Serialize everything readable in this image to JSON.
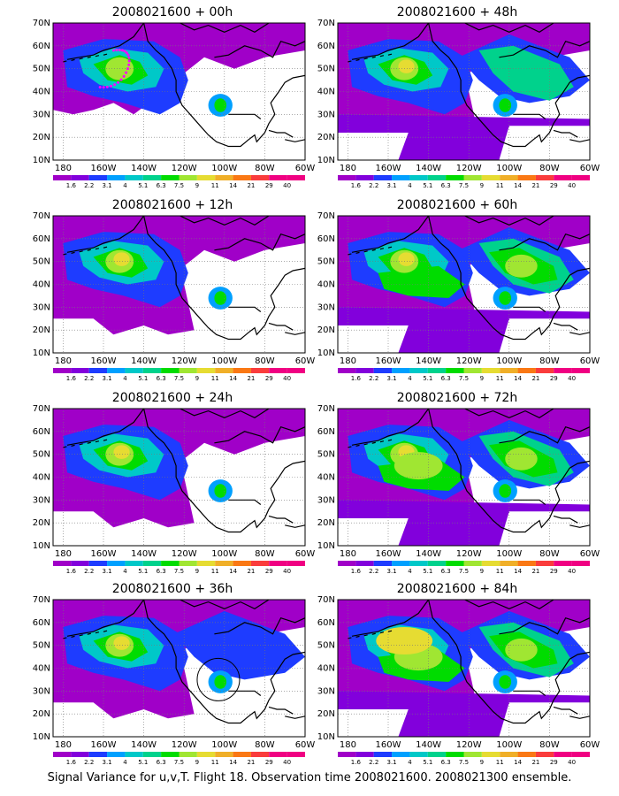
{
  "footer": "Signal Variance for u,v,T. Flight 18. Observation time 2008021600. 2008021300 ensemble.",
  "chart_data": {
    "type": "heatmap",
    "projection": "lat-lon map, North Pacific / North America",
    "x_ticks": [
      "180",
      "160W",
      "140W",
      "120W",
      "100W",
      "80W",
      "60W"
    ],
    "y_ticks": [
      "10N",
      "20N",
      "30N",
      "40N",
      "50N",
      "60N",
      "70N"
    ],
    "xlim": [
      "175E",
      "60W"
    ],
    "ylim": [
      "10N",
      "70N"
    ],
    "grid": true,
    "colorbar": {
      "labels": [
        "1.6",
        "2.2",
        "3.1",
        "4",
        "5.1",
        "6.3",
        "7.5",
        "9",
        "11",
        "14",
        "21",
        "29",
        "40"
      ],
      "colors": [
        "#a000c8",
        "#8200dc",
        "#1e3cff",
        "#00a0ff",
        "#00c8c8",
        "#00d28c",
        "#00dc00",
        "#a0e632",
        "#e6dc32",
        "#f0af28",
        "#fa7814",
        "#fa3c3c",
        "#f00082"
      ]
    },
    "colors": {
      "land_background": "#ffffff",
      "coast": "#000000",
      "flight_track": "#ff00ff",
      "circle": "#000000"
    },
    "panels": [
      {
        "title": "2008021600 + 00h",
        "position": "left-row1",
        "level": 1,
        "flight_track": true,
        "circle": false
      },
      {
        "title": "2008021600 + 48h",
        "position": "right-row1",
        "level": 4,
        "flight_track": false,
        "circle": false
      },
      {
        "title": "2008021600 + 12h",
        "position": "left-row2",
        "level": 2,
        "flight_track": false,
        "circle": false
      },
      {
        "title": "2008021600 + 60h",
        "position": "right-row2",
        "level": 5,
        "flight_track": false,
        "circle": false
      },
      {
        "title": "2008021600 + 24h",
        "position": "left-row3",
        "level": 2.5,
        "flight_track": false,
        "circle": false
      },
      {
        "title": "2008021600 + 72h",
        "position": "right-row3",
        "level": 6,
        "flight_track": false,
        "circle": false
      },
      {
        "title": "2008021600 + 36h",
        "position": "left-row4",
        "level": 3,
        "flight_track": false,
        "circle": true
      },
      {
        "title": "2008021600 + 84h",
        "position": "right-row4",
        "level": 7,
        "flight_track": false,
        "circle": false
      }
    ]
  }
}
